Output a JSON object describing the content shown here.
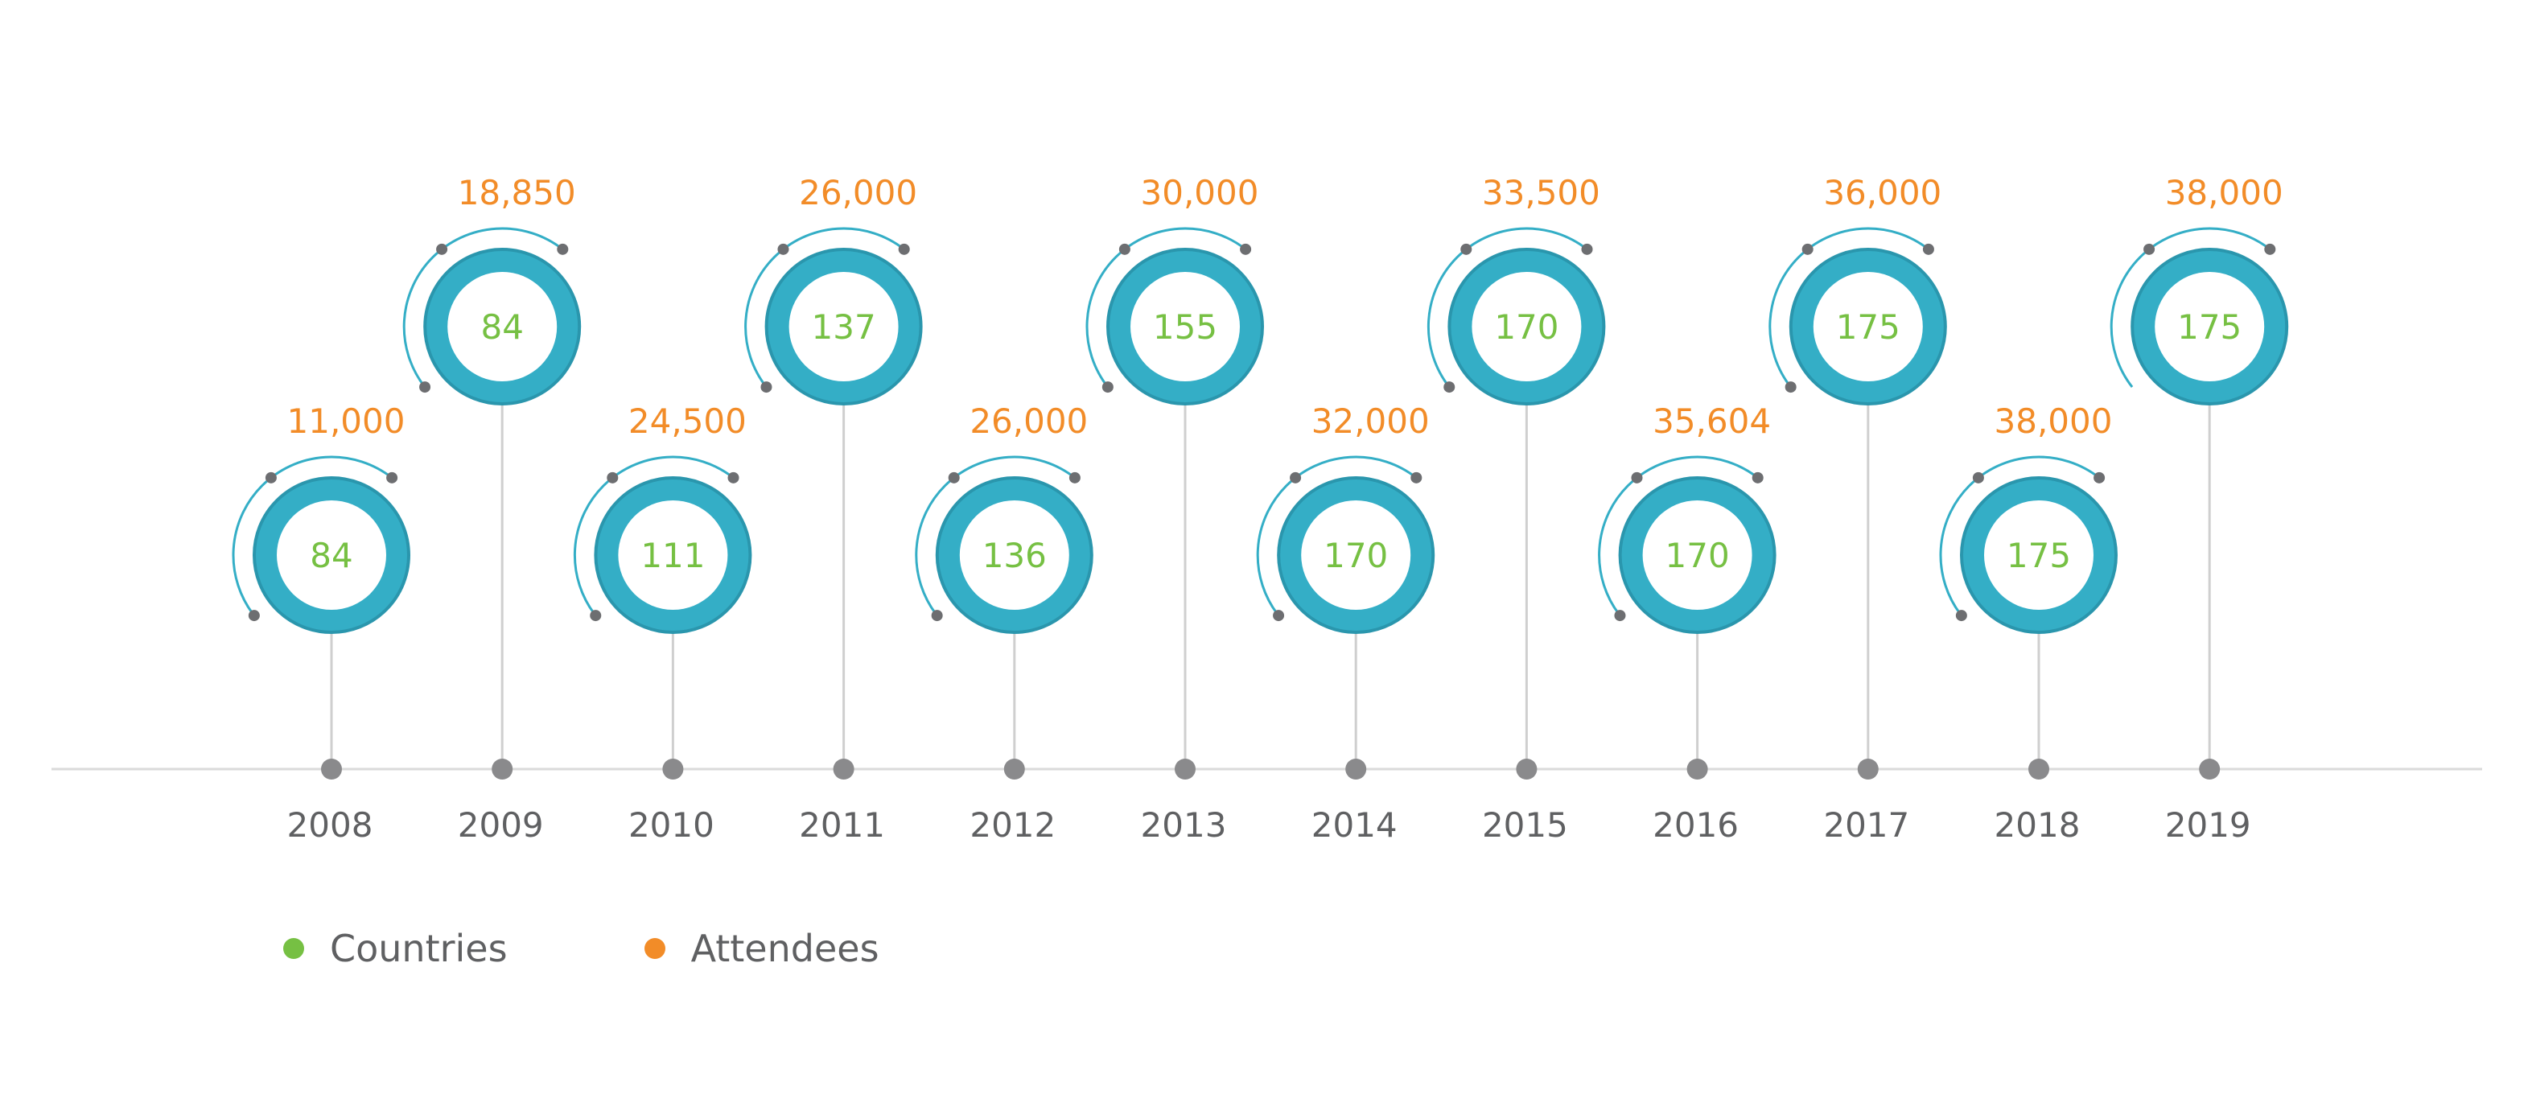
{
  "chart_data": {
    "type": "timeline",
    "categories": [
      "2008",
      "2009",
      "2010",
      "2011",
      "2012",
      "2013",
      "2014",
      "2015",
      "2016",
      "2017",
      "2018",
      "2019"
    ],
    "series": [
      {
        "name": "Countries",
        "values": [
          84,
          84,
          111,
          137,
          136,
          155,
          170,
          170,
          170,
          175,
          175,
          175
        ],
        "color": "#76c043"
      },
      {
        "name": "Attendees",
        "values": [
          "11,000",
          "18,850",
          "24,500",
          "26,000",
          "26,000",
          "30,000",
          "32,000",
          "33,500",
          "35,604",
          "36,000",
          "38,000",
          "38,000"
        ],
        "color": "#f28c28"
      }
    ],
    "grid": false,
    "legend_placement": "bottom-left"
  },
  "colors": {
    "ring": "#34aec6",
    "ring_edge": "#2a96ad",
    "arc": "#34aec6",
    "arc_end": "#6d6e71",
    "stem": "#cfcfcf",
    "axis_line": "#dadada",
    "axis_dot": "#8a8a8c",
    "year_text": "#5f6062"
  },
  "legend": {
    "items": [
      {
        "label": "Countries",
        "color": "#76c043"
      },
      {
        "label": "Attendees",
        "color": "#f28c28"
      }
    ]
  }
}
